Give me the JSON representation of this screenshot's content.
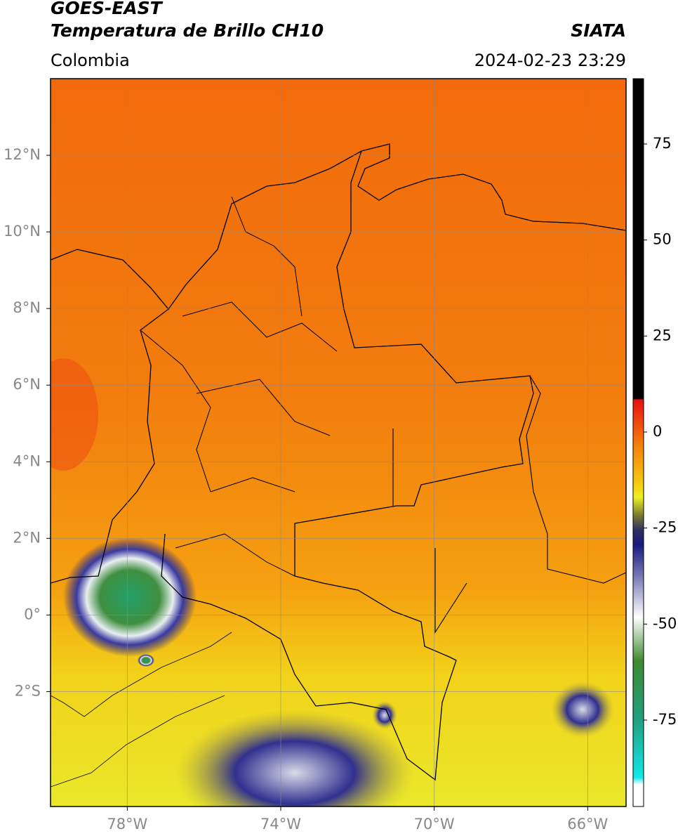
{
  "header": {
    "title_line1": "GOES-EAST",
    "title_line2": "Temperatura de Brillo CH10",
    "region": "Colombia",
    "source": "SIATA",
    "datetime": "2024-02-23 23:29"
  },
  "map": {
    "xlim": [
      -80,
      -65
    ],
    "ylim": [
      -5,
      14
    ],
    "xticks": [
      {
        "value": -78,
        "label": "78°W"
      },
      {
        "value": -74,
        "label": "74°W"
      },
      {
        "value": -70,
        "label": "70°W"
      },
      {
        "value": -66,
        "label": "66°W"
      }
    ],
    "yticks": [
      {
        "value": 12,
        "label": "12°N"
      },
      {
        "value": 10,
        "label": "10°N"
      },
      {
        "value": 8,
        "label": "8°N"
      },
      {
        "value": 6,
        "label": "6°N"
      },
      {
        "value": 4,
        "label": "4°N"
      },
      {
        "value": 2,
        "label": "2°N"
      },
      {
        "value": 0,
        "label": "0°"
      },
      {
        "value": -2,
        "label": "2°S"
      }
    ],
    "grid": true
  },
  "colorbar": {
    "lim": [
      -97.5,
      92
    ],
    "ticks": [
      75,
      50,
      25,
      0,
      -25,
      -50,
      -75
    ]
  }
}
